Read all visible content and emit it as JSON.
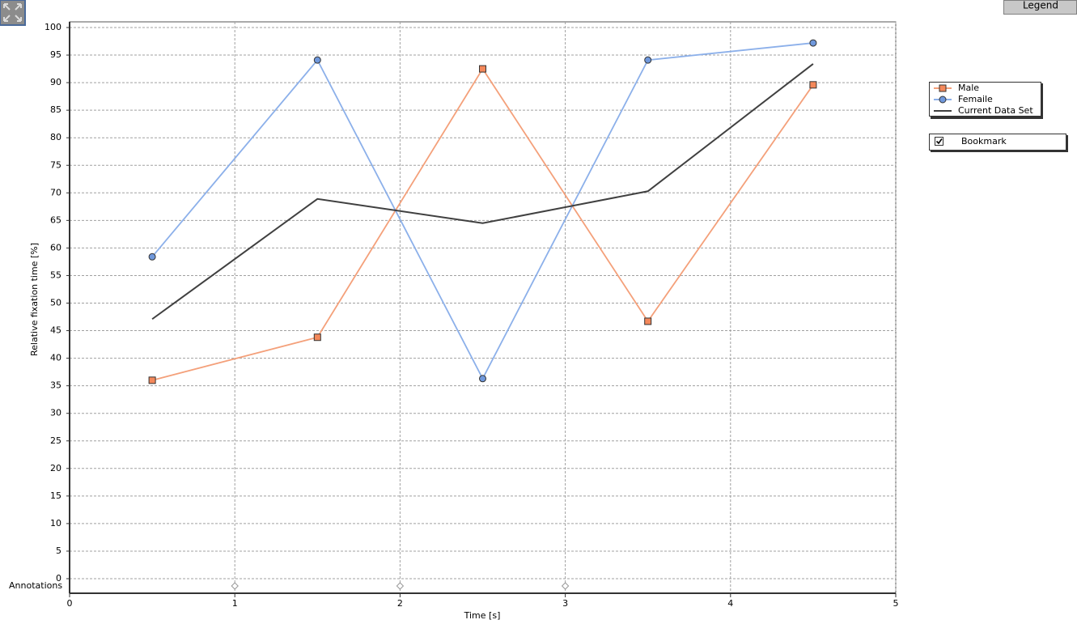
{
  "chart_data": {
    "type": "line",
    "xlabel": "Time [s]",
    "ylabel": "Relative fixation time [%]",
    "x": [
      0.5,
      1.5,
      2.5,
      3.5,
      4.5
    ],
    "series": [
      {
        "name": "Male",
        "color": "#f4a07a",
        "marker": "square",
        "marker_color": "#f4885a",
        "values": [
          36.0,
          43.8,
          92.5,
          46.7,
          89.6
        ]
      },
      {
        "name": "Femaile",
        "color": "#8cb0ea",
        "marker": "circle",
        "marker_color": "#6f98dc",
        "values": [
          58.4,
          94.1,
          36.3,
          94.1,
          97.2
        ]
      },
      {
        "name": "Current Data Set",
        "color": "#404040",
        "values": [
          47.1,
          68.9,
          64.5,
          70.3,
          93.4
        ]
      }
    ],
    "xlim": [
      0,
      5
    ],
    "ylim": [
      0,
      100
    ],
    "xticks": [
      0,
      1,
      2,
      3,
      4,
      5
    ],
    "yticks": [
      0,
      5,
      10,
      15,
      20,
      25,
      30,
      35,
      40,
      45,
      50,
      55,
      60,
      65,
      70,
      75,
      80,
      85,
      90,
      95,
      100
    ],
    "grid": true,
    "annotations": {
      "label": "Annotations",
      "x": [
        1,
        2,
        3
      ]
    },
    "legend_button": "Legend",
    "bookmark": "Bookmark"
  }
}
